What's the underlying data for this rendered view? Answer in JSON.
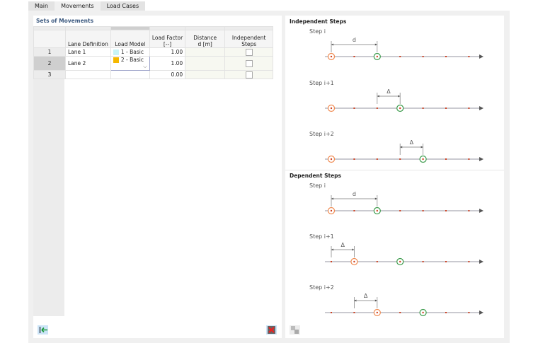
{
  "tabs": [
    {
      "label": "Main"
    },
    {
      "label": "Movements"
    },
    {
      "label": "Load Cases"
    }
  ],
  "left": {
    "title": "Sets of Movements",
    "columns": [
      "Lane Definition",
      "Load Model",
      "Load Factor\n[--]",
      "Distance\nd [m]",
      "Independent\nSteps"
    ],
    "rows": [
      {
        "no": "1",
        "lane": "Lane 1",
        "model": "1 - Basic",
        "color": "#c8f4f8",
        "factor": "1.00"
      },
      {
        "no": "2",
        "lane": "Lane 2",
        "model": "2 - Basic",
        "color": "#f5b800",
        "factor": "1.00"
      },
      {
        "no": "3",
        "lane": "",
        "model": "",
        "color": "",
        "factor": "0.00"
      }
    ]
  },
  "right": {
    "independent_title": "Independent Steps",
    "dependent_title": "Dependent Steps",
    "steps": [
      {
        "label": "Step i",
        "dim": "d",
        "orange": 0,
        "green": 2,
        "dimFrom": 0,
        "dimTo": 2
      },
      {
        "label": "Step i+1",
        "dim": "Δ",
        "orange": 0,
        "green": 3,
        "dimFrom": 2,
        "dimTo": 3
      },
      {
        "label": "Step i+2",
        "dim": "Δ",
        "orange": 0,
        "green": 4,
        "dimFrom": 3,
        "dimTo": 4
      },
      {
        "label": "Step i",
        "dim": "d",
        "orange": 0,
        "green": 2,
        "dimFrom": 0,
        "dimTo": 2
      },
      {
        "label": "Step i+1",
        "dim": "Δ",
        "orange": 1,
        "green": 3,
        "dimFrom": 0,
        "dimTo": 1
      },
      {
        "label": "Step i+2",
        "dim": "Δ",
        "orange": 2,
        "green": 4,
        "dimFrom": 1,
        "dimTo": 2
      }
    ]
  },
  "colors": {
    "orange": "#f08a50",
    "green": "#3a9a4a",
    "tick": "#d04020",
    "axis": "#b8b8c0",
    "title": "#3d5a80"
  },
  "icons": {
    "import": "import-icon",
    "delete": "delete-icon",
    "swap": "swap-icon"
  }
}
